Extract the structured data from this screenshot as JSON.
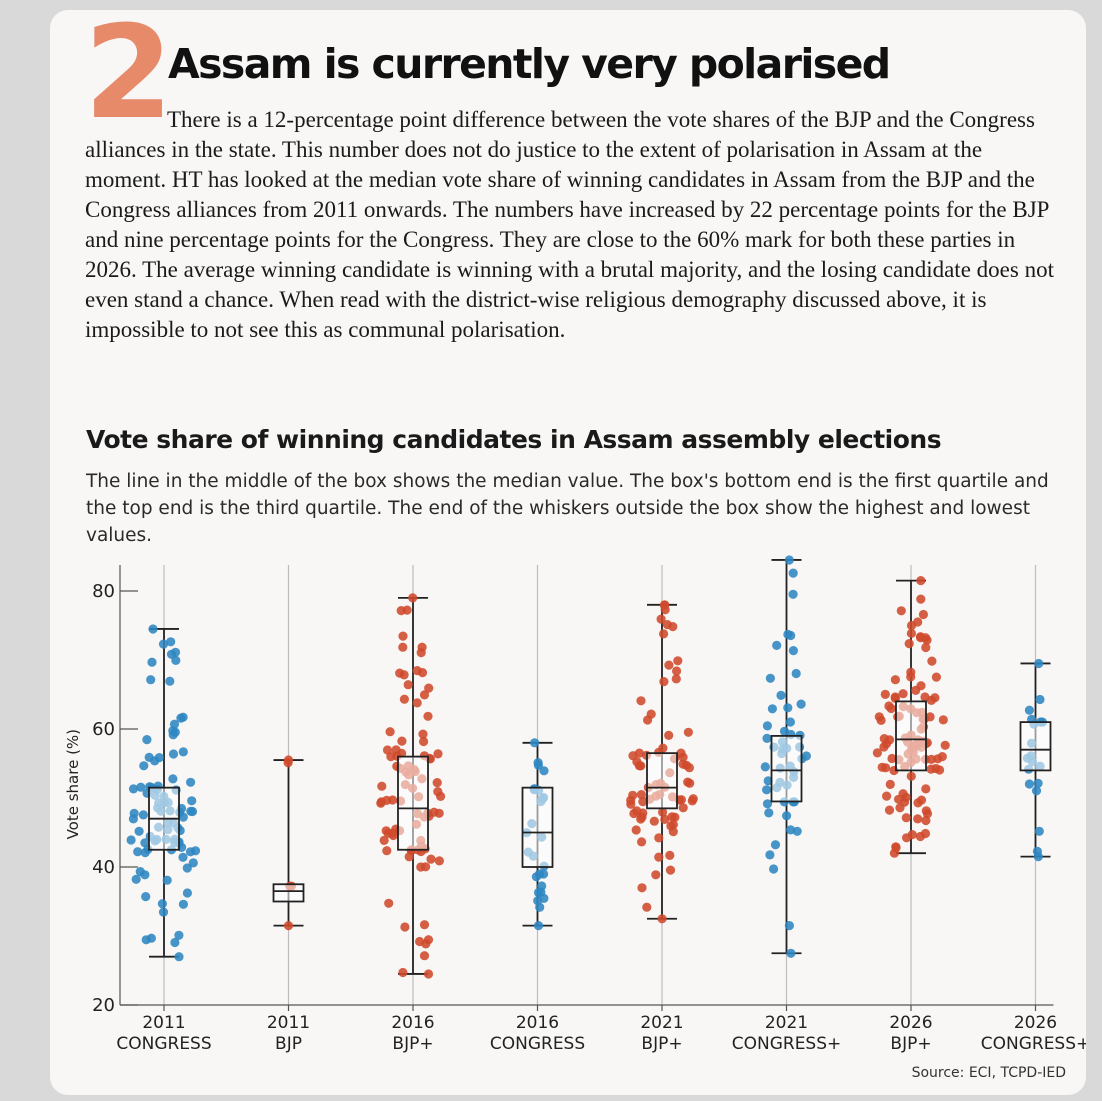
{
  "header": {
    "number": "2",
    "headline": "Assam is currently very polarised"
  },
  "body_text": "There is a 12-percentage point difference between the vote shares of the BJP and the Congress alliances in the state. This number does not do justice to the extent of polarisation in Assam at the moment. HT has looked at the median vote share of winning candidates in Assam from the BJP and the Congress alliances from 2011 onwards. The numbers have increased by 22 percentage points for the BJP and nine percentage points for the Congress. They are close to the 60% mark for both these parties in 2026. The average winning candidate is winning with a brutal majority, and the losing candidate does not even stand a chance. When read with the district-wise religious demography discussed above, it is impossible to not see this as communal polarisation.",
  "source": "Source: ECI, TCPD-IED",
  "colors": {
    "accent_number": "#e68a6a",
    "congress": "#2e86c1",
    "bjp": "#cf4a2c"
  },
  "chart_data": {
    "type": "box",
    "title": "Vote share of winning candidates in Assam assembly elections",
    "description": "The line in the middle of the box shows the median value. The box's bottom end is the first quartile and the top end is the third quartile. The end of the whiskers outside the box show the highest and lowest values.",
    "ylabel": "Vote share (%)",
    "ylim": [
      20,
      85
    ],
    "yticks": [
      20,
      40,
      60,
      80
    ],
    "categories": [
      {
        "year": "2011",
        "party": "CONGRESS",
        "color_key": "congress",
        "min": 27,
        "q1": 42.5,
        "median": 47,
        "q3": 51.5,
        "max": 74.5,
        "points": 90
      },
      {
        "year": "2011",
        "party": "BJP",
        "color_key": "bjp",
        "min": 31.5,
        "q1": 35,
        "median": 36.5,
        "q3": 37.5,
        "max": 55.5,
        "points": 5
      },
      {
        "year": "2016",
        "party": "BJP+",
        "color_key": "bjp",
        "min": 24.5,
        "q1": 42.5,
        "median": 48.5,
        "q3": 56,
        "max": 79,
        "points": 86
      },
      {
        "year": "2016",
        "party": "CONGRESS",
        "color_key": "congress",
        "min": 31.5,
        "q1": 40,
        "median": 45,
        "q3": 51.5,
        "max": 58,
        "points": 26
      },
      {
        "year": "2021",
        "party": "BJP+",
        "color_key": "bjp",
        "min": 32.5,
        "q1": 48.5,
        "median": 51.5,
        "q3": 56.5,
        "max": 78,
        "points": 75
      },
      {
        "year": "2021",
        "party": "CONGRESS+",
        "color_key": "congress",
        "min": 27.5,
        "q1": 49.5,
        "median": 54,
        "q3": 59,
        "max": 84.5,
        "points": 50
      },
      {
        "year": "2026",
        "party": "BJP+",
        "color_key": "bjp",
        "min": 42,
        "q1": 54,
        "median": 58.5,
        "q3": 64,
        "max": 81.5,
        "points": 102
      },
      {
        "year": "2026",
        "party": "CONGRESS+",
        "color_key": "congress",
        "min": 41.5,
        "q1": 54,
        "median": 57,
        "q3": 61,
        "max": 69.5,
        "points": 19
      }
    ]
  }
}
